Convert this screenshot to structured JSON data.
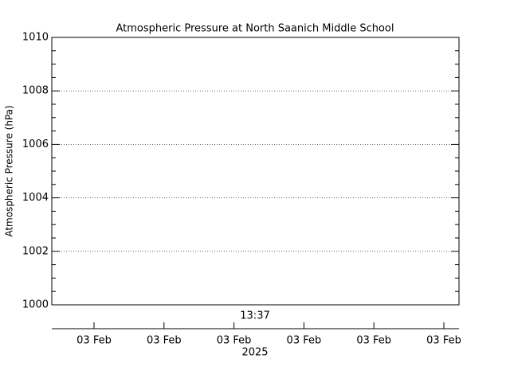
{
  "chart_data": {
    "type": "line",
    "title": "Atmospheric Pressure at North Saanich Middle School",
    "y_label": "Atmospheric Pressure (hPa)",
    "ylim": [
      1000,
      1010
    ],
    "yticks": [
      1000,
      1002,
      1004,
      1006,
      1008,
      1010
    ],
    "minor_yticks": [
      1000.5,
      1001,
      1001.5,
      1002.5,
      1003,
      1003.5,
      1004.5,
      1005,
      1005.5,
      1006.5,
      1007,
      1007.5,
      1008.5,
      1009,
      1009.5
    ],
    "grid": true,
    "time_label": "13:37",
    "xtick_labels": [
      "03 Feb",
      "03 Feb",
      "03 Feb",
      "03 Feb",
      "03 Feb",
      "03 Feb"
    ],
    "x_year": "2025",
    "series": []
  }
}
